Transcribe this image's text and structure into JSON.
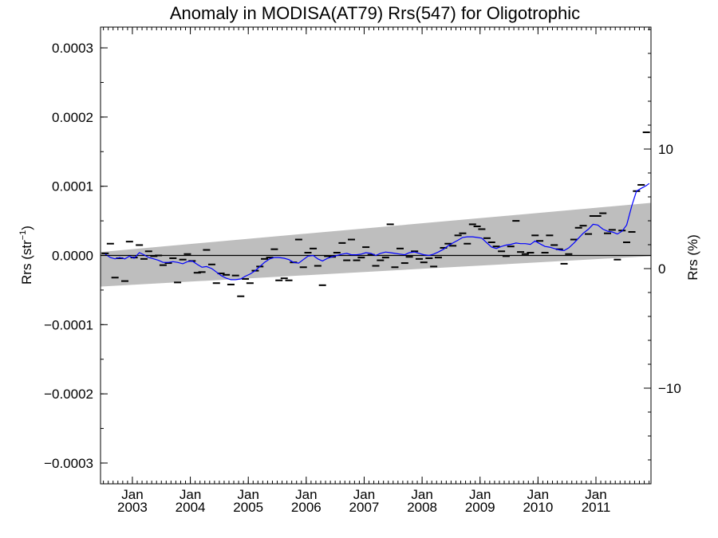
{
  "chart_data": {
    "type": "line",
    "title": "Anomaly in MODISA(AT79) Rrs(547) for Oligotrophic",
    "ylabel_left": "Rrs (str",
    "ylabel_left_sup": "−1",
    "ylabel_left_close": ")",
    "ylabel_right": "Rrs (%)",
    "ylim_left": [
      -0.00033,
      0.00033
    ],
    "ylim_right": [
      -18.0,
      20.2
    ],
    "xlim": [
      2002.45,
      2011.95
    ],
    "y_ticks_left": [
      {
        "value": 0.0003,
        "label": "0.0003"
      },
      {
        "value": 0.0002,
        "label": "0.0002"
      },
      {
        "value": 0.0001,
        "label": "0.0001"
      },
      {
        "value": 0.0,
        "label": "0.0000"
      },
      {
        "value": -0.0001,
        "label": "−0.0001"
      },
      {
        "value": -0.0002,
        "label": "−0.0002"
      },
      {
        "value": -0.0003,
        "label": "−0.0003"
      }
    ],
    "y_ticks_right": [
      {
        "value": 10,
        "label": "10"
      },
      {
        "value": 0,
        "label": "0"
      },
      {
        "value": -10,
        "label": "−10"
      }
    ],
    "x_ticks": [
      {
        "value": 2003.0,
        "month": "Jan",
        "year": "2003"
      },
      {
        "value": 2004.0,
        "month": "Jan",
        "year": "2004"
      },
      {
        "value": 2005.0,
        "month": "Jan",
        "year": "2005"
      },
      {
        "value": 2006.0,
        "month": "Jan",
        "year": "2006"
      },
      {
        "value": 2007.0,
        "month": "Jan",
        "year": "2007"
      },
      {
        "value": 2008.0,
        "month": "Jan",
        "year": "2008"
      },
      {
        "value": 2009.0,
        "month": "Jan",
        "year": "2009"
      },
      {
        "value": 2010.0,
        "month": "Jan",
        "year": "2010"
      },
      {
        "value": 2011.0,
        "month": "Jan",
        "year": "2011"
      }
    ],
    "band": {
      "x": [
        2002.45,
        2011.95
      ],
      "lower": [
        -4.5e-05,
        -1e-06
      ],
      "upper": [
        5e-06,
        7.6e-05
      ],
      "color": "#bebebe"
    },
    "zero_line": 0,
    "series": [
      {
        "kind": "monthly",
        "marker": "dash",
        "color": "#000000",
        "points": [
          [
            2002.53,
            3e-06
          ],
          [
            2002.62,
            1.7e-05
          ],
          [
            2002.7,
            -3.2e-05
          ],
          [
            2002.78,
            -4e-06
          ],
          [
            2002.87,
            -3.7e-05
          ],
          [
            2002.95,
            2e-05
          ],
          [
            2003.03,
            -3e-06
          ],
          [
            2003.12,
            1.5e-05
          ],
          [
            2003.2,
            -5e-06
          ],
          [
            2003.28,
            6e-06
          ],
          [
            2003.37,
            -1e-06
          ],
          [
            2003.45,
            0.0
          ],
          [
            2003.53,
            -1.4e-05
          ],
          [
            2003.62,
            -1.1e-05
          ],
          [
            2003.7,
            -4e-06
          ],
          [
            2003.78,
            -3.9e-05
          ],
          [
            2003.87,
            -6e-06
          ],
          [
            2003.95,
            2e-06
          ],
          [
            2004.03,
            -8e-06
          ],
          [
            2004.12,
            -2.5e-05
          ],
          [
            2004.2,
            -2.4e-05
          ],
          [
            2004.28,
            8e-06
          ],
          [
            2004.37,
            -1.3e-05
          ],
          [
            2004.45,
            -4e-05
          ],
          [
            2004.53,
            -2.6e-05
          ],
          [
            2004.62,
            -2.8e-05
          ],
          [
            2004.7,
            -4.2e-05
          ],
          [
            2004.78,
            -2.9e-05
          ],
          [
            2004.87,
            -5.9e-05
          ],
          [
            2004.95,
            -3.4e-05
          ],
          [
            2005.03,
            -4e-05
          ],
          [
            2005.12,
            -2.2e-05
          ],
          [
            2005.2,
            -1.6e-05
          ],
          [
            2005.28,
            -5e-06
          ],
          [
            2005.37,
            -3e-06
          ],
          [
            2005.45,
            9e-06
          ],
          [
            2005.53,
            -3.6e-05
          ],
          [
            2005.62,
            -3.3e-05
          ],
          [
            2005.7,
            -3.6e-05
          ],
          [
            2005.78,
            -1e-05
          ],
          [
            2005.87,
            2.3e-05
          ],
          [
            2005.95,
            -1.7e-05
          ],
          [
            2006.03,
            4e-06
          ],
          [
            2006.12,
            1e-05
          ],
          [
            2006.2,
            -1.5e-05
          ],
          [
            2006.28,
            -4.3e-05
          ],
          [
            2006.37,
            -1e-06
          ],
          [
            2006.45,
            -2e-06
          ],
          [
            2006.53,
            4e-06
          ],
          [
            2006.62,
            1.8e-05
          ],
          [
            2006.7,
            -7e-06
          ],
          [
            2006.78,
            2.3e-05
          ],
          [
            2006.87,
            -7e-06
          ],
          [
            2006.95,
            -3e-06
          ],
          [
            2007.03,
            1.2e-05
          ],
          [
            2007.12,
            1e-06
          ],
          [
            2007.2,
            -1.5e-05
          ],
          [
            2007.28,
            -7e-06
          ],
          [
            2007.37,
            -3e-06
          ],
          [
            2007.45,
            4.5e-05
          ],
          [
            2007.53,
            -1.7e-05
          ],
          [
            2007.62,
            1e-05
          ],
          [
            2007.7,
            -1.1e-05
          ],
          [
            2007.78,
            -2e-06
          ],
          [
            2007.87,
            6e-06
          ],
          [
            2007.95,
            -5e-06
          ],
          [
            2008.03,
            -1e-05
          ],
          [
            2008.12,
            -4e-06
          ],
          [
            2008.2,
            -1.6e-05
          ],
          [
            2008.28,
            -3e-06
          ],
          [
            2008.37,
            1.1e-05
          ],
          [
            2008.45,
            1.7e-05
          ],
          [
            2008.53,
            1.4e-05
          ],
          [
            2008.62,
            2.9e-05
          ],
          [
            2008.7,
            3.2e-05
          ],
          [
            2008.78,
            1.7e-05
          ],
          [
            2008.87,
            4.5e-05
          ],
          [
            2008.95,
            4.2e-05
          ],
          [
            2009.03,
            3.8e-05
          ],
          [
            2009.12,
            2.5e-05
          ],
          [
            2009.2,
            1.9e-05
          ],
          [
            2009.28,
            1.3e-05
          ],
          [
            2009.37,
            6e-06
          ],
          [
            2009.45,
            -1e-06
          ],
          [
            2009.53,
            1.3e-05
          ],
          [
            2009.62,
            5e-05
          ],
          [
            2009.7,
            5e-06
          ],
          [
            2009.78,
            2e-06
          ],
          [
            2009.87,
            4e-06
          ],
          [
            2009.95,
            2.9e-05
          ],
          [
            2010.03,
            2.1e-05
          ],
          [
            2010.12,
            4e-06
          ],
          [
            2010.2,
            2.9e-05
          ],
          [
            2010.28,
            1.5e-05
          ],
          [
            2010.37,
            9e-06
          ],
          [
            2010.45,
            -1.2e-05
          ],
          [
            2010.53,
            2e-06
          ],
          [
            2010.62,
            2.3e-05
          ],
          [
            2010.7,
            4e-05
          ],
          [
            2010.78,
            4.3e-05
          ],
          [
            2010.87,
            3.1e-05
          ],
          [
            2010.95,
            5.7e-05
          ],
          [
            2011.03,
            5.7e-05
          ],
          [
            2011.12,
            6.1e-05
          ],
          [
            2011.2,
            3.2e-05
          ],
          [
            2011.28,
            3.7e-05
          ],
          [
            2011.37,
            -6e-06
          ],
          [
            2011.45,
            3.6e-05
          ],
          [
            2011.53,
            1.9e-05
          ],
          [
            2011.62,
            3.4e-05
          ],
          [
            2011.7,
            9.3e-05
          ],
          [
            2011.78,
            0.000102
          ],
          [
            2011.87,
            0.000178
          ]
        ]
      },
      {
        "kind": "running-mean",
        "marker": "line",
        "color": "#0000ff",
        "points": [
          [
            2002.53,
            2e-06
          ],
          [
            2002.62,
            -3e-06
          ],
          [
            2002.7,
            -5e-06
          ],
          [
            2002.78,
            -3e-06
          ],
          [
            2002.87,
            -5e-06
          ],
          [
            2002.95,
            -1e-06
          ],
          [
            2003.03,
            -4e-06
          ],
          [
            2003.12,
            4e-06
          ],
          [
            2003.2,
            1e-06
          ],
          [
            2003.28,
            -3e-06
          ],
          [
            2003.37,
            -5e-06
          ],
          [
            2003.45,
            -7e-06
          ],
          [
            2003.53,
            -1e-05
          ],
          [
            2003.62,
            -1e-05
          ],
          [
            2003.7,
            -9e-06
          ],
          [
            2003.78,
            -1e-05
          ],
          [
            2003.87,
            -1.2e-05
          ],
          [
            2003.95,
            -9e-06
          ],
          [
            2004.03,
            -8e-06
          ],
          [
            2004.12,
            -1.3e-05
          ],
          [
            2004.2,
            -1.7e-05
          ],
          [
            2004.28,
            -1.6e-05
          ],
          [
            2004.37,
            -1.9e-05
          ],
          [
            2004.45,
            -2.4e-05
          ],
          [
            2004.53,
            -2.9e-05
          ],
          [
            2004.62,
            -3.3e-05
          ],
          [
            2004.7,
            -3.5e-05
          ],
          [
            2004.78,
            -3.5e-05
          ],
          [
            2004.87,
            -3.4e-05
          ],
          [
            2004.95,
            -3e-05
          ],
          [
            2005.03,
            -2.7e-05
          ],
          [
            2005.12,
            -2.2e-05
          ],
          [
            2005.2,
            -1.6e-05
          ],
          [
            2005.28,
            -1e-05
          ],
          [
            2005.37,
            -5e-06
          ],
          [
            2005.45,
            -3e-06
          ],
          [
            2005.53,
            -3e-06
          ],
          [
            2005.62,
            -4e-06
          ],
          [
            2005.7,
            -6e-06
          ],
          [
            2005.78,
            -1e-05
          ],
          [
            2005.87,
            -1.1e-05
          ],
          [
            2005.95,
            -6e-06
          ],
          [
            2006.03,
            -1e-06
          ],
          [
            2006.12,
            0.0
          ],
          [
            2006.2,
            -5e-06
          ],
          [
            2006.28,
            -8e-06
          ],
          [
            2006.37,
            -4e-06
          ],
          [
            2006.45,
            -2e-06
          ],
          [
            2006.53,
            0.0
          ],
          [
            2006.62,
            2e-06
          ],
          [
            2006.7,
            3e-06
          ],
          [
            2006.78,
            1e-06
          ],
          [
            2006.87,
            1e-06
          ],
          [
            2006.95,
            2e-06
          ],
          [
            2007.03,
            4e-06
          ],
          [
            2007.12,
            3e-06
          ],
          [
            2007.2,
            0.0
          ],
          [
            2007.28,
            3e-06
          ],
          [
            2007.37,
            5e-06
          ],
          [
            2007.45,
            4e-06
          ],
          [
            2007.53,
            3e-06
          ],
          [
            2007.62,
            2e-06
          ],
          [
            2007.7,
            1e-06
          ],
          [
            2007.78,
            4e-06
          ],
          [
            2007.87,
            5e-06
          ],
          [
            2007.95,
            3e-06
          ],
          [
            2008.03,
            1e-06
          ],
          [
            2008.12,
            0.0
          ],
          [
            2008.2,
            2e-06
          ],
          [
            2008.28,
            5e-06
          ],
          [
            2008.37,
            9e-06
          ],
          [
            2008.45,
            1.4e-05
          ],
          [
            2008.53,
            1.8e-05
          ],
          [
            2008.62,
            2.2e-05
          ],
          [
            2008.7,
            2.6e-05
          ],
          [
            2008.78,
            2.7e-05
          ],
          [
            2008.87,
            2.7e-05
          ],
          [
            2008.95,
            2.6e-05
          ],
          [
            2009.03,
            2.5e-05
          ],
          [
            2009.12,
            1.8e-05
          ],
          [
            2009.2,
            1.2e-05
          ],
          [
            2009.28,
            1e-05
          ],
          [
            2009.37,
            1.3e-05
          ],
          [
            2009.45,
            1.5e-05
          ],
          [
            2009.53,
            1.6e-05
          ],
          [
            2009.62,
            1.8e-05
          ],
          [
            2009.7,
            1.7e-05
          ],
          [
            2009.78,
            1.7e-05
          ],
          [
            2009.87,
            1.6e-05
          ],
          [
            2009.95,
            2.1e-05
          ],
          [
            2010.03,
            1.7e-05
          ],
          [
            2010.12,
            1.3e-05
          ],
          [
            2010.2,
            1.2e-05
          ],
          [
            2010.28,
            1e-05
          ],
          [
            2010.37,
            8e-06
          ],
          [
            2010.45,
            7e-06
          ],
          [
            2010.53,
            1.1e-05
          ],
          [
            2010.62,
            1.8e-05
          ],
          [
            2010.7,
            2.5e-05
          ],
          [
            2010.78,
            3.2e-05
          ],
          [
            2010.87,
            3.8e-05
          ],
          [
            2010.95,
            4.5e-05
          ],
          [
            2011.03,
            4.4e-05
          ],
          [
            2011.12,
            3.8e-05
          ],
          [
            2011.2,
            3.5e-05
          ],
          [
            2011.28,
            3.4e-05
          ],
          [
            2011.37,
            3.1e-05
          ],
          [
            2011.45,
            3.5e-05
          ],
          [
            2011.53,
            4.4e-05
          ],
          [
            2011.62,
            7.2e-05
          ],
          [
            2011.7,
            9.3e-05
          ],
          [
            2011.78,
            9.7e-05
          ],
          [
            2011.87,
            0.000101
          ],
          [
            2011.92,
            0.000104
          ]
        ]
      }
    ]
  }
}
